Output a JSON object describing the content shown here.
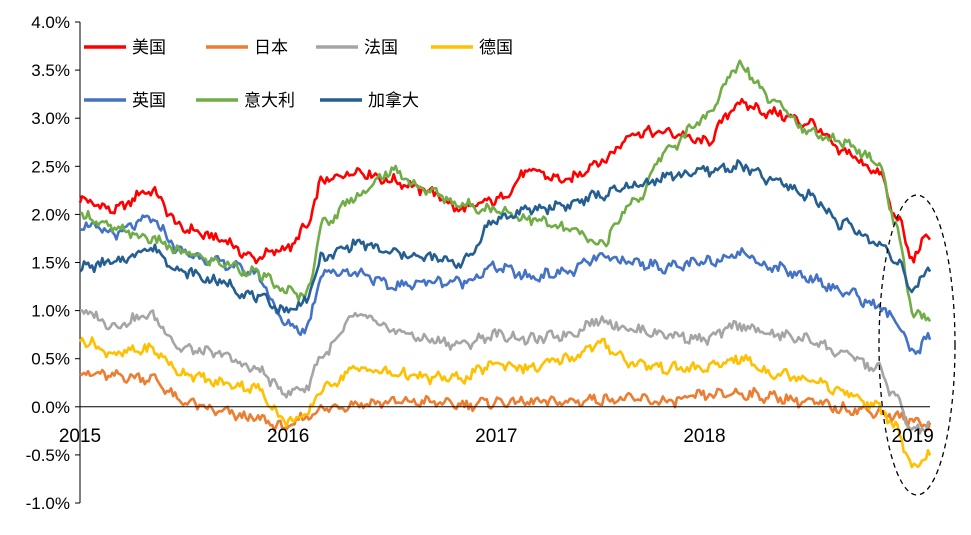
{
  "chart_data": {
    "type": "line",
    "title": "",
    "xlabel": "",
    "ylabel": "",
    "x_ticks": [
      "2015",
      "2016",
      "2017",
      "2018",
      "2019"
    ],
    "y_ticks": [
      "4.0%",
      "3.5%",
      "3.0%",
      "2.5%",
      "2.0%",
      "1.5%",
      "1.0%",
      "0.5%",
      "0.0%",
      "-0.5%",
      "-1.0%"
    ],
    "ylim": [
      -1.0,
      4.0
    ],
    "xlim": [
      "2015-01",
      "2019-02"
    ],
    "grid": false,
    "legend_position": "top-left",
    "annotation": "dashed ellipse highlighting early 2019",
    "series": [
      {
        "name": "美国",
        "color": "#ff0000",
        "x": [
          "2015-01",
          "2015-03",
          "2015-05",
          "2015-07",
          "2015-09",
          "2015-11",
          "2016-01",
          "2016-02",
          "2016-03",
          "2016-05",
          "2016-07",
          "2016-09",
          "2016-11",
          "2017-01",
          "2017-03",
          "2017-05",
          "2017-07",
          "2017-09",
          "2017-11",
          "2018-01",
          "2018-03",
          "2018-05",
          "2018-07",
          "2018-09",
          "2018-11",
          "2018-12",
          "2019-01",
          "2019-02"
        ],
        "values": [
          2.15,
          2.05,
          2.25,
          1.85,
          1.75,
          1.55,
          1.65,
          1.85,
          2.35,
          2.45,
          2.35,
          2.25,
          2.05,
          2.15,
          2.45,
          2.35,
          2.55,
          2.85,
          2.85,
          2.75,
          3.15,
          3.05,
          2.95,
          2.65,
          2.45,
          2.0,
          1.55,
          1.8
        ]
      },
      {
        "name": "日本",
        "color": "#ed7d31",
        "x": [
          "2015-01",
          "2015-03",
          "2015-05",
          "2015-07",
          "2015-09",
          "2015-11",
          "2016-01",
          "2016-02",
          "2016-03",
          "2016-05",
          "2016-07",
          "2016-09",
          "2016-11",
          "2017-01",
          "2017-03",
          "2017-05",
          "2017-07",
          "2017-09",
          "2017-11",
          "2018-01",
          "2018-03",
          "2018-05",
          "2018-07",
          "2018-09",
          "2018-11",
          "2018-12",
          "2019-01",
          "2019-02"
        ],
        "values": [
          0.35,
          0.32,
          0.3,
          0.05,
          -0.05,
          -0.12,
          -0.22,
          -0.1,
          -0.02,
          0.03,
          0.05,
          0.05,
          0.02,
          0.05,
          0.05,
          0.05,
          0.08,
          0.08,
          0.05,
          0.12,
          0.14,
          0.1,
          0.05,
          -0.02,
          -0.05,
          -0.1,
          -0.15,
          -0.18
        ]
      },
      {
        "name": "法国",
        "color": "#a5a5a5",
        "x": [
          "2015-01",
          "2015-03",
          "2015-05",
          "2015-07",
          "2015-09",
          "2015-11",
          "2016-01",
          "2016-02",
          "2016-03",
          "2016-05",
          "2016-07",
          "2016-09",
          "2016-11",
          "2017-01",
          "2017-03",
          "2017-05",
          "2017-07",
          "2017-09",
          "2017-11",
          "2018-01",
          "2018-03",
          "2018-05",
          "2018-07",
          "2018-09",
          "2018-11",
          "2018-12",
          "2019-01",
          "2019-02"
        ],
        "values": [
          1.0,
          0.85,
          0.95,
          0.6,
          0.55,
          0.4,
          0.15,
          0.2,
          0.55,
          0.95,
          0.8,
          0.7,
          0.65,
          0.75,
          0.7,
          0.75,
          0.9,
          0.8,
          0.75,
          0.7,
          0.85,
          0.75,
          0.7,
          0.55,
          0.4,
          0.1,
          -0.25,
          -0.2
        ]
      },
      {
        "name": "德国",
        "color": "#ffc000",
        "x": [
          "2015-01",
          "2015-03",
          "2015-05",
          "2015-07",
          "2015-09",
          "2015-11",
          "2016-01",
          "2016-02",
          "2016-03",
          "2016-05",
          "2016-07",
          "2016-09",
          "2016-11",
          "2017-01",
          "2017-03",
          "2017-05",
          "2017-07",
          "2017-09",
          "2017-11",
          "2018-01",
          "2018-03",
          "2018-05",
          "2018-07",
          "2018-09",
          "2018-11",
          "2018-12",
          "2019-01",
          "2019-02"
        ],
        "values": [
          0.7,
          0.55,
          0.6,
          0.35,
          0.25,
          0.2,
          -0.15,
          -0.1,
          0.2,
          0.4,
          0.35,
          0.3,
          0.3,
          0.45,
          0.4,
          0.5,
          0.65,
          0.45,
          0.4,
          0.4,
          0.5,
          0.35,
          0.3,
          0.15,
          0.0,
          -0.2,
          -0.65,
          -0.5
        ]
      },
      {
        "name": "英国",
        "color": "#4472c4",
        "x": [
          "2015-01",
          "2015-03",
          "2015-05",
          "2015-07",
          "2015-09",
          "2015-11",
          "2016-01",
          "2016-02",
          "2016-03",
          "2016-05",
          "2016-07",
          "2016-09",
          "2016-11",
          "2017-01",
          "2017-03",
          "2017-05",
          "2017-07",
          "2017-09",
          "2017-11",
          "2018-01",
          "2018-03",
          "2018-05",
          "2018-07",
          "2018-09",
          "2018-11",
          "2018-12",
          "2019-01",
          "2019-02"
        ],
        "values": [
          1.9,
          1.8,
          1.95,
          1.6,
          1.5,
          1.4,
          0.85,
          0.8,
          1.4,
          1.4,
          1.25,
          1.3,
          1.3,
          1.45,
          1.35,
          1.4,
          1.55,
          1.5,
          1.45,
          1.5,
          1.6,
          1.45,
          1.35,
          1.2,
          1.05,
          0.9,
          0.55,
          0.72
        ]
      },
      {
        "name": "意大利",
        "color": "#70ad47",
        "x": [
          "2015-01",
          "2015-03",
          "2015-05",
          "2015-07",
          "2015-09",
          "2015-11",
          "2016-01",
          "2016-02",
          "2016-03",
          "2016-05",
          "2016-07",
          "2016-09",
          "2016-11",
          "2017-01",
          "2017-03",
          "2017-05",
          "2017-07",
          "2017-09",
          "2017-11",
          "2018-01",
          "2018-03",
          "2018-05",
          "2018-07",
          "2018-09",
          "2018-11",
          "2018-12",
          "2019-01",
          "2019-02"
        ],
        "values": [
          2.0,
          1.85,
          1.75,
          1.6,
          1.5,
          1.4,
          1.2,
          1.15,
          1.9,
          2.2,
          2.45,
          2.25,
          2.1,
          2.05,
          1.95,
          1.85,
          1.7,
          2.15,
          2.7,
          3.0,
          3.55,
          3.2,
          2.85,
          2.75,
          2.55,
          1.9,
          1.0,
          0.88
        ]
      },
      {
        "name": "加拿大",
        "color": "#255e91",
        "x": [
          "2015-01",
          "2015-03",
          "2015-05",
          "2015-07",
          "2015-09",
          "2015-11",
          "2016-01",
          "2016-02",
          "2016-03",
          "2016-05",
          "2016-07",
          "2016-09",
          "2016-11",
          "2017-01",
          "2017-03",
          "2017-05",
          "2017-07",
          "2017-09",
          "2017-11",
          "2018-01",
          "2018-03",
          "2018-05",
          "2018-07",
          "2018-09",
          "2018-11",
          "2018-12",
          "2019-01",
          "2019-02"
        ],
        "values": [
          1.45,
          1.5,
          1.65,
          1.4,
          1.3,
          1.15,
          1.0,
          1.1,
          1.55,
          1.7,
          1.6,
          1.55,
          1.5,
          1.95,
          2.05,
          2.1,
          2.2,
          2.3,
          2.4,
          2.45,
          2.5,
          2.35,
          2.2,
          1.9,
          1.7,
          1.55,
          1.2,
          1.45
        ]
      }
    ]
  }
}
